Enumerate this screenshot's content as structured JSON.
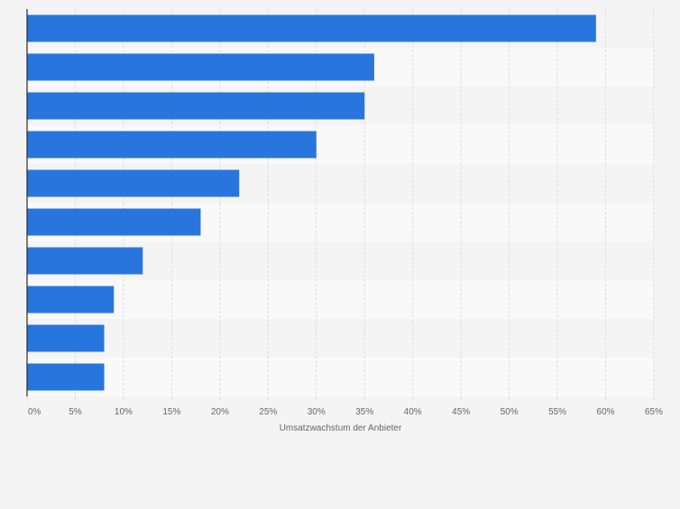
{
  "chart_data": {
    "type": "bar",
    "orientation": "horizontal",
    "categories": [
      "",
      "",
      "",
      "",
      "",
      "",
      "",
      "",
      "",
      ""
    ],
    "values": [
      59,
      36,
      35,
      30,
      22,
      18,
      12,
      9,
      8,
      8
    ],
    "title": "",
    "xlabel": "Umsatzwachstum der Anbieter",
    "ylabel": "",
    "xlim": [
      0,
      65
    ],
    "ticks": [
      0,
      5,
      10,
      15,
      20,
      25,
      30,
      35,
      40,
      45,
      50,
      55,
      60,
      65
    ],
    "tick_labels": [
      "0%",
      "5%",
      "10%",
      "15%",
      "20%",
      "25%",
      "30%",
      "35%",
      "40%",
      "45%",
      "50%",
      "55%",
      "60%",
      "65%"
    ],
    "grid": true,
    "legend": "none"
  },
  "colors": {
    "bar": "#2876dd",
    "page_background": "#f4f4f4",
    "band_light": "#f9f9f9",
    "band_dark": "#f4f4f4",
    "grid": "#dcdcdc",
    "axis": "#2b2b2b",
    "tick_text": "#666666"
  }
}
